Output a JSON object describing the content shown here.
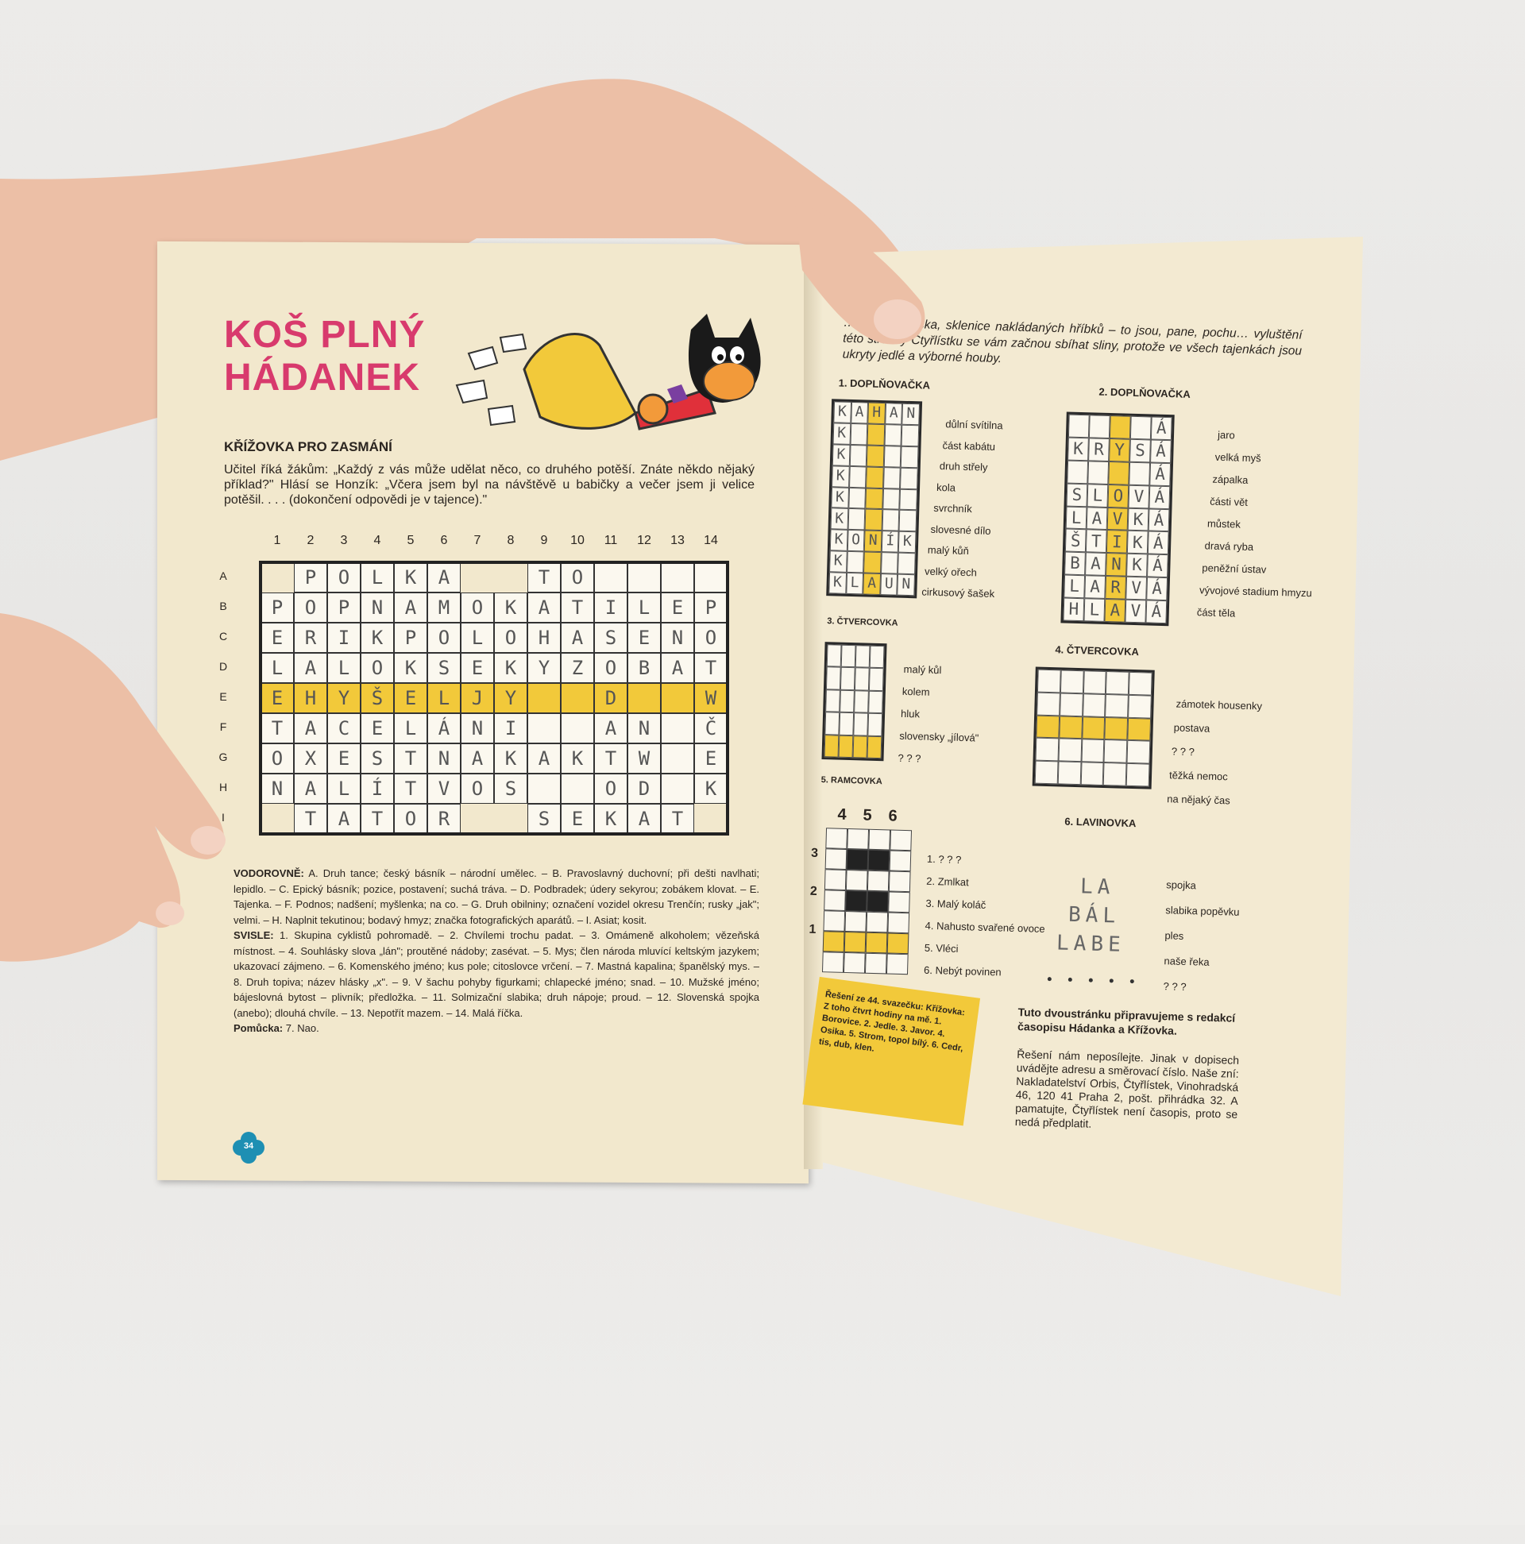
{
  "left_page": {
    "title_line1": "KOŠ PLNÝ",
    "title_line2": "HÁDANEK",
    "subtitle": "KŘÍŽOVKA PRO ZASMÁNÍ",
    "intro": "Učitel říká žákům: „Každý z vás může udělat něco, co druhého potěší. Znáte někdo nějaký příklad?\" Hlásí se Honzík: „Včera jsem byl na návštěvě u babičky a večer jsem ji velice potěšil. . . . (dokončení odpovědi je v tajence).\"",
    "column_numbers": [
      "1",
      "2",
      "3",
      "4",
      "5",
      "6",
      "7",
      "8",
      "9",
      "10",
      "11",
      "12",
      "13",
      "14"
    ],
    "row_letters": [
      "A",
      "B",
      "C",
      "D",
      "E",
      "F",
      "G",
      "H",
      "I"
    ],
    "grid_rows": [
      " POLKA  TO    ",
      "POPNAMOKATILEP",
      "ERIKPOLOHASENO",
      "LALOKSEKYZOBAT",
      "EHYŠELJY  D  W",
      "TACELÁNI  AN Č",
      "OXESTNAKAKTW E",
      "NALÍTVOS  OD K",
      " TATOR  SEKAT "
    ],
    "highlight_row": "E",
    "clues_across_label": "VODOROVNĚ:",
    "clues_across": "A. Druh tance; český básník – národní umělec. – B. Pravoslavný duchovní; při dešti navlhati; lepidlo. – C. Epický básník; pozice, postavení; suchá tráva. – D. Podbradek; údery sekyrou; zobákem klovat. – E. Tajenka. – F. Podnos; nadšení; myšlenka; na co. – G. Druh obilniny; označení vozidel okresu Trenčín; rusky „jak\"; velmi. – H. Naplnit tekutinou; bodavý hmyz; značka fotografických aparátů. – I. Asiat; kosit.",
    "clues_down_label": "SVISLE:",
    "clues_down": "1. Skupina cyklistů pohromadě. – 2. Chvílemi trochu padat. – 3. Omámeně alkoholem; vězeňská místnost. – 4. Souhlásky slova „lán\"; proutěné nádoby; zasévat. – 5. Mys; člen národa mluvící keltským jazykem; ukazovací zájmeno. – 6. Komenského jméno; kus pole; citoslovce vrčení. – 7. Mastná kapalina; španělský mys. – 8. Druh topiva; název hlásky „x\". – 9. V šachu pohyby figurkami; chlapecké jméno; snad. – 10. Mužské jméno; bájeslovná bytost – plivník; předložka. – 11. Solmizační slabika; druh nápoje; proud. – 12. Slovenská spojka (anebo); dlouhá chvíle. – 13. Nepotřít mazem. – 14. Malá říčka.",
    "hint_label": "Pomůcka:",
    "hint": "7. Nao.",
    "page_number": "34"
  },
  "right_page": {
    "intro": "…ubová omáčka, sklenice nakládaných hříbků – to jsou, pane, pochu… vyluštění této stránky Čtyřlístku se vám začnou sbíhat sliny, protože ve všech tajenkách jsou ukryty jedlé a výborné houby.",
    "puzzle1": {
      "title": "1. DOPLŇOVAČKA",
      "rows": [
        "KAHAN",
        "K    ",
        "K    ",
        "K    ",
        "K    ",
        "K    ",
        "KONÍK",
        "K    ",
        "KLAUN"
      ],
      "clues": [
        "důlní svítilna",
        "část kabátu",
        "druh střely",
        "kola",
        "svrchník",
        "slovesné dílo",
        "malý kůň",
        "velký ořech",
        "cirkusový šašek"
      ]
    },
    "puzzle2": {
      "title": "2. DOPLŇOVAČKA",
      "rows": [
        "    Á",
        "KRYSÁ",
        "    Á",
        "SLOVÁ",
        "LAVKÁ",
        "ŠTIKÁ",
        "BANKÁ",
        "LARVÁ",
        "HLAVÁ"
      ],
      "clues": [
        "jaro",
        "velká myš",
        "zápalka",
        "části vět",
        "můstek",
        "dravá ryba",
        "peněžní ústav",
        "vývojové stadium hmyzu",
        "část těla"
      ]
    },
    "puzzle3": {
      "title": "3. ČTVERCOVKA",
      "clues": [
        "malý kůl",
        "kolem",
        "hluk",
        "slovensky „jílová\"",
        "? ? ?"
      ]
    },
    "puzzle4": {
      "title": "4. ČTVERCOVKA",
      "clues": [
        "zámotek housenky",
        "postava",
        "? ? ?",
        "těžká nemoc",
        "na nějaký čas"
      ]
    },
    "puzzle5": {
      "title": "5. RAMCOVKA",
      "col_numbers": [
        "4",
        "5",
        "6"
      ],
      "row_numbers": [
        "3",
        "2",
        "1"
      ],
      "clues": [
        "1. ? ? ?",
        "2. Zmlkat",
        "3. Malý koláč",
        "4. Nahusto svařené ovoce",
        "5. Vléci",
        "6. Nebýt povinen"
      ]
    },
    "puzzle6": {
      "title": "6. LAVINOVKA",
      "lines": [
        "LA",
        "BÁL",
        "LABE"
      ],
      "clues": [
        "spojka",
        "slabika popěvku",
        "ples",
        "naše řeka",
        "? ? ?"
      ]
    },
    "solution_box": "Řešení ze 44. svazečku: Křížovka: Z toho čtvrt hodiny na mě. 1. Borovice. 2. Jedle. 3. Javor. 4. Osika. 5. Strom, topol bílý. 6. Cedr, tis, dub, klen.",
    "credit": "Tuto dvoustránku připravujeme s redakcí časopisu Hádanka a Křížovka.",
    "note": "Řešení nám neposílejte. Jinak v dopisech uvádějte adresu a směrovací číslo. Naše zní: Nakladatelství Orbis, Čtyřlístek, Vinohradská 46, 120 41 Praha 2, pošt. přihrádka 32. A pamatujte, Čtyřlístek není časopis, proto se nedá předplatit."
  },
  "colors": {
    "title_pink": "#d83a6d",
    "highlight_yellow": "#f2c93a",
    "paper": "#f2e8cd",
    "skin": "#ecbfa6",
    "clover_teal": "#1e8fb3"
  }
}
